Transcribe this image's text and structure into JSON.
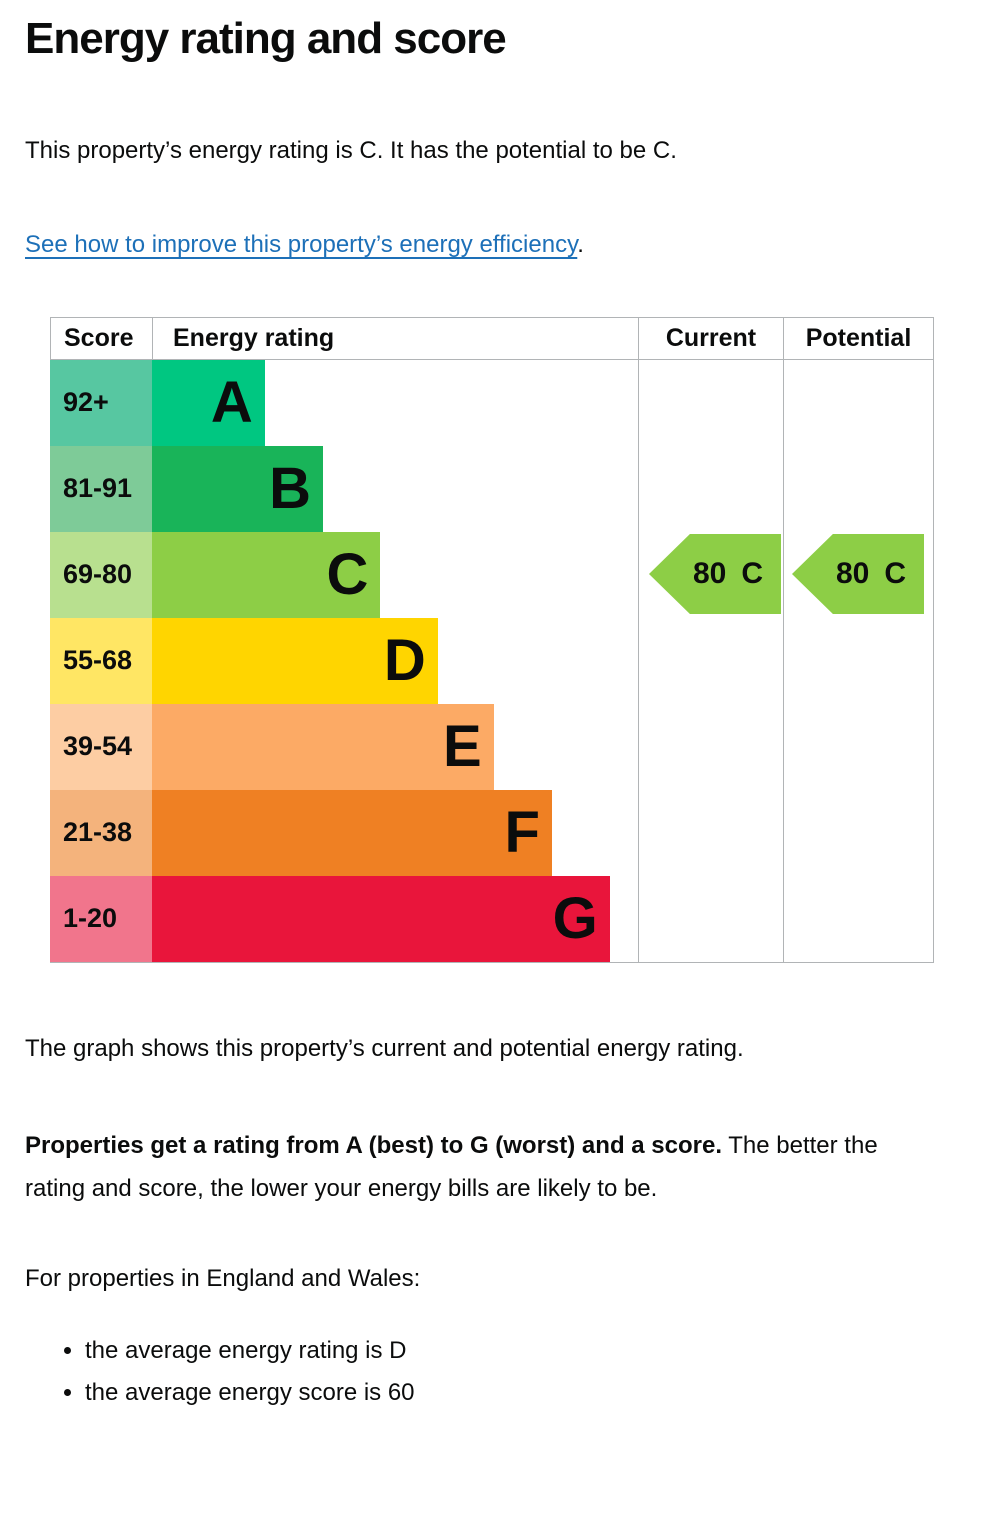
{
  "page": {
    "heading": "Energy rating and score",
    "intro": "This property’s energy rating is C. It has the potential to be C.",
    "improve_link": "See how to improve this property’s energy efficiency",
    "improve_link_suffix": ".",
    "graph_caption": "The graph shows this property’s current and potential energy rating.",
    "explain_bold": "Properties get a rating from A (best) to G (worst) and a score.",
    "explain_rest": " The better the rating and score, the lower your energy bills are likely to be.",
    "regions_heading": "For properties in England and Wales:",
    "bullet_rating": "the average energy rating is D",
    "bullet_score": "the average energy score is 60"
  },
  "chart": {
    "headers": {
      "score": "Score",
      "rating": "Energy rating",
      "current": "Current",
      "potential": "Potential"
    },
    "bands": [
      {
        "score": "92+",
        "letter": "A",
        "color": "#00c781",
        "tint": "#57c7a1",
        "width_pct": 23.2
      },
      {
        "score": "81-91",
        "letter": "B",
        "color": "#19b459",
        "tint": "#7ecb98",
        "width_pct": 35.2
      },
      {
        "score": "69-80",
        "letter": "C",
        "color": "#8dce46",
        "tint": "#b8e08f",
        "width_pct": 47.0
      },
      {
        "score": "55-68",
        "letter": "D",
        "color": "#ffd500",
        "tint": "#ffe664",
        "width_pct": 58.8
      },
      {
        "score": "39-54",
        "letter": "E",
        "color": "#fcaa65",
        "tint": "#fdcda3",
        "width_pct": 70.3
      },
      {
        "score": "21-38",
        "letter": "F",
        "color": "#ef8023",
        "tint": "#f4b37c",
        "width_pct": 82.3
      },
      {
        "score": "1-20",
        "letter": "G",
        "color": "#e9153b",
        "tint": "#f1758c",
        "width_pct": 94.2
      }
    ],
    "current": {
      "value": "80",
      "letter": "C",
      "color": "#8dce46"
    },
    "potential": {
      "value": "80",
      "letter": "C",
      "color": "#8dce46"
    }
  },
  "chart_data": {
    "type": "bar",
    "title": "Energy rating and score",
    "columns": [
      "Score",
      "Energy rating",
      "Current",
      "Potential"
    ],
    "categories": [
      "A",
      "B",
      "C",
      "D",
      "E",
      "F",
      "G"
    ],
    "score_ranges": [
      "92+",
      "81-91",
      "69-80",
      "55-68",
      "39-54",
      "21-38",
      "1-20"
    ],
    "bar_lengths_relative": [
      0.23,
      0.35,
      0.47,
      0.59,
      0.7,
      0.82,
      0.94
    ],
    "band_colors": [
      "#00c781",
      "#19b459",
      "#8dce46",
      "#ffd500",
      "#fcaa65",
      "#ef8023",
      "#e9153b"
    ],
    "current": {
      "score": 80,
      "rating": "C"
    },
    "potential": {
      "score": 80,
      "rating": "C"
    },
    "annotations": [
      "80 C (current)",
      "80 C (potential)"
    ],
    "legend_position": "none"
  }
}
